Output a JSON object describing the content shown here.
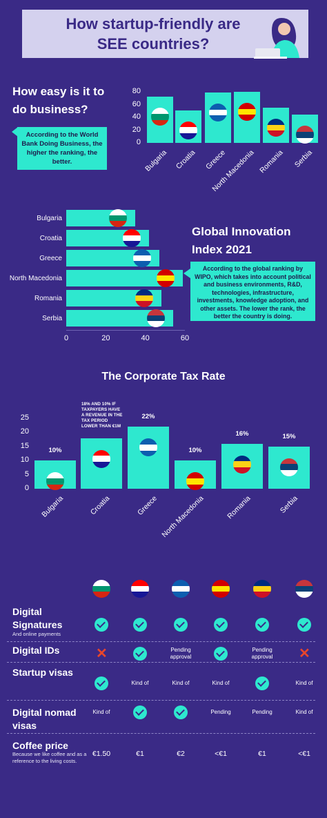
{
  "header": {
    "title_line1": "How startup-friendly are",
    "title_line2": "SEE countries?"
  },
  "doing_business": {
    "heading_line1": "How easy is it to",
    "heading_line2": "do business?",
    "callout": "According to the World Bank Doing Business, the higher the ranking, the better."
  },
  "innovation": {
    "heading_line1": "Global Innovation",
    "heading_line2": "Index 2021",
    "callout": "According to the global ranking by WIPO, which takes into account political and business environments, R&D, technologies, infrastructure, investments, knowledge adoption, and other assets. The lower the rank, the better the country is doing."
  },
  "tax": {
    "heading": "The Corporate Tax Rate",
    "croatia_note": "18% AND 10% IF TAXPAYERS HAVE A REVENUE IN THE TAX PERIOD LOWER THAN €1M"
  },
  "flags": {
    "Bulgaria": [
      "#ffffff",
      "#00966e",
      "#d62612"
    ],
    "Croatia": [
      "#ff0000",
      "#ffffff",
      "#171796"
    ],
    "Greece": [
      "#0d5eaf",
      "#ffffff",
      "#0d5eaf"
    ],
    "North Macedonia": [
      "#d20000",
      "#ffe600",
      "#d20000"
    ],
    "Romania": [
      "#002b7f",
      "#fcd116",
      "#ce1126"
    ],
    "Serbia": [
      "#c6363c",
      "#0c4076",
      "#ffffff"
    ]
  },
  "chart_data": [
    {
      "type": "bar",
      "title": "How easy is it to do business?",
      "categories": [
        "Bulgaria",
        "Croatia",
        "Greece",
        "North Macedonia",
        "Romania",
        "Serbia"
      ],
      "values": [
        72,
        51,
        79,
        80,
        55,
        44
      ],
      "ylim": [
        0,
        80
      ],
      "yticks": [
        0,
        20,
        40,
        60,
        80
      ]
    },
    {
      "type": "bar",
      "orientation": "horizontal",
      "title": "Global Innovation Index 2021",
      "categories": [
        "Bulgaria",
        "Croatia",
        "Greece",
        "North Macedonia",
        "Romania",
        "Serbia"
      ],
      "values": [
        35,
        42,
        47,
        59,
        48,
        54
      ],
      "xlim": [
        0,
        60
      ],
      "xticks": [
        0,
        20,
        40,
        60
      ]
    },
    {
      "type": "bar",
      "title": "The Corporate Tax Rate",
      "categories": [
        "Bulgaria",
        "Croatia",
        "Greece",
        "North Macedonia",
        "Romania",
        "Serbia"
      ],
      "values": [
        10,
        18,
        22,
        10,
        16,
        15
      ],
      "data_labels": [
        "10%",
        "",
        "22%",
        "10%",
        "16%",
        "15%"
      ],
      "ylim": [
        0,
        25
      ],
      "yticks": [
        0,
        5,
        10,
        15,
        20,
        25
      ]
    }
  ],
  "comparison": {
    "countries": [
      "Bulgaria",
      "Croatia",
      "Greece",
      "North Macedonia",
      "Romania",
      "Serbia"
    ],
    "rows": [
      {
        "label": "Digital Signatures",
        "sub": "And online payments",
        "cells": [
          "check",
          "check",
          "check",
          "check",
          "check",
          "check"
        ]
      },
      {
        "label": "Digital IDs",
        "sub": "",
        "cells": [
          "cross",
          "check",
          "Pending approval",
          "check",
          "Pending approval",
          "cross"
        ]
      },
      {
        "label": "Startup visas",
        "sub": "",
        "cells": [
          "check",
          "Kind of",
          "Kind of",
          "Kind of",
          "check",
          "Kind of"
        ]
      },
      {
        "label": "Digital nomad visas",
        "sub": "",
        "cells": [
          "Kind of",
          "check",
          "check",
          "Pending",
          "Pending",
          "Kind of"
        ]
      },
      {
        "label": "Coffee price",
        "sub": "Because we like coffee and as a reference to the living costs.",
        "cells": [
          "€1.50",
          "€1",
          "€2",
          "<€1",
          "€1",
          "<€1"
        ]
      }
    ]
  }
}
